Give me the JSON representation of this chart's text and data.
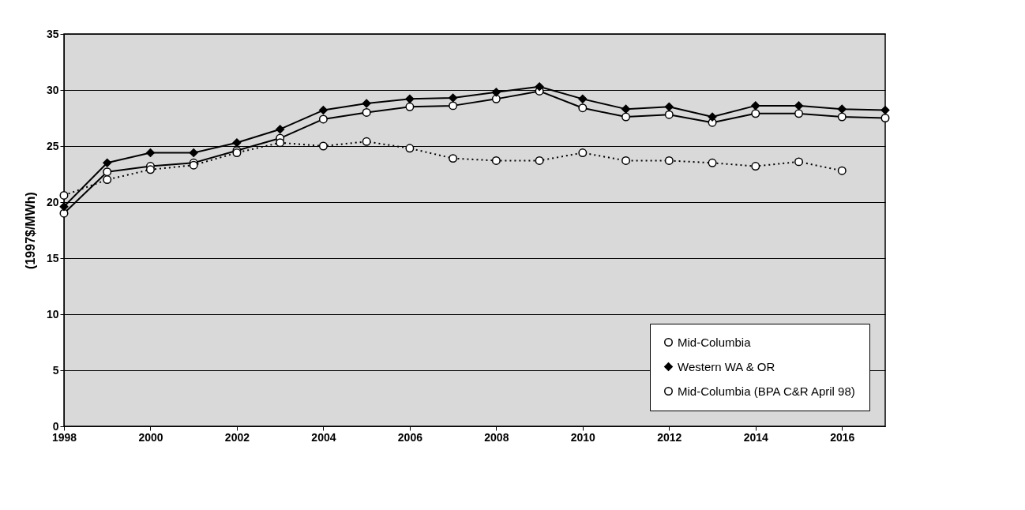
{
  "chart_data": {
    "type": "line",
    "ylabel": "(1997$/MWh)",
    "x": [
      1998,
      1999,
      2000,
      2001,
      2002,
      2003,
      2004,
      2005,
      2006,
      2007,
      2008,
      2009,
      2010,
      2011,
      2012,
      2013,
      2014,
      2015,
      2016,
      2017
    ],
    "series": [
      {
        "name": "Mid-Columbia",
        "color": "#000000",
        "marker": "circle",
        "line_style": "solid",
        "values": [
          19.0,
          22.7,
          23.2,
          23.5,
          24.6,
          25.7,
          27.4,
          28.0,
          28.5,
          28.6,
          29.2,
          29.9,
          28.4,
          27.6,
          27.8,
          27.1,
          27.9,
          27.9,
          27.6,
          27.5
        ]
      },
      {
        "name": "Western WA & OR",
        "color": "#000000",
        "marker": "diamond",
        "line_style": "solid",
        "values": [
          19.6,
          23.5,
          24.4,
          24.4,
          25.3,
          26.5,
          28.2,
          28.8,
          29.2,
          29.3,
          29.8,
          30.3,
          29.2,
          28.3,
          28.5,
          27.6,
          28.6,
          28.6,
          28.3,
          28.2
        ]
      },
      {
        "name": "Mid-Columbia (BPA C&R April 98)",
        "color": "#000000",
        "marker": "circle",
        "line_style": "dotted",
        "values": [
          20.6,
          22.0,
          22.9,
          23.3,
          24.4,
          25.3,
          25.0,
          25.4,
          24.8,
          23.9,
          23.7,
          23.7,
          24.4,
          23.7,
          23.7,
          23.5,
          23.2,
          23.6,
          22.8,
          null
        ]
      }
    ],
    "xlim": [
      1998,
      2017
    ],
    "xticks": [
      1998,
      2000,
      2002,
      2004,
      2006,
      2008,
      2010,
      2012,
      2014,
      2016
    ],
    "ylim": [
      0,
      35
    ],
    "yticks": [
      0,
      5,
      10,
      15,
      20,
      25,
      30,
      35
    ],
    "grid": "y",
    "legend": "bottom right"
  }
}
